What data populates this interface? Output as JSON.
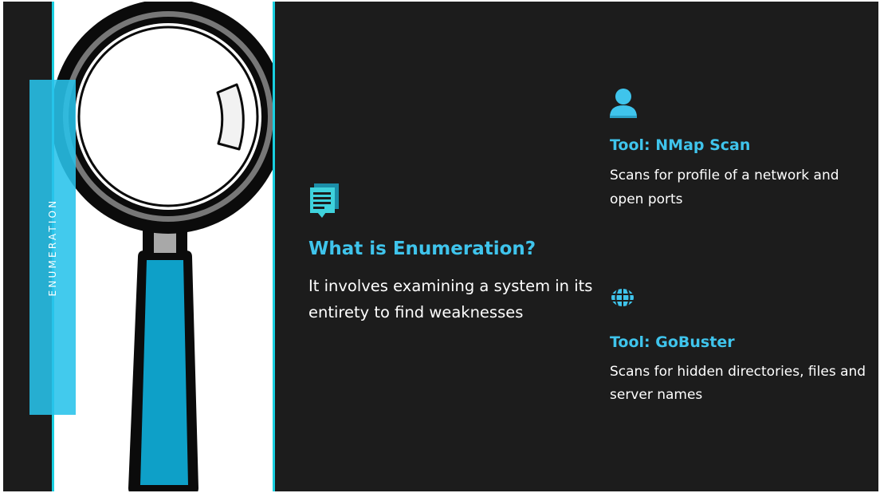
{
  "slide": {
    "side_label": "ENUMERATION",
    "main": {
      "icon": "chat-document-icon",
      "title": "What is Enumeration?",
      "text": "It involves examining a system in its entirety to find weaknesses"
    },
    "tools": [
      {
        "icon": "user-icon",
        "title": "Tool: NMap Scan",
        "text": "Scans for profile of a network and open ports"
      },
      {
        "icon": "globe-icon",
        "title": "Tool: GoBuster",
        "text": "Scans for hidden directories, files and server names"
      }
    ],
    "image": "magnifying-glass-illustration"
  },
  "colors": {
    "background": "#1c1c1c",
    "accent": "#3fc4ec",
    "frame_border": "#19cfe0",
    "handle_blue": "#0ea0c8"
  }
}
